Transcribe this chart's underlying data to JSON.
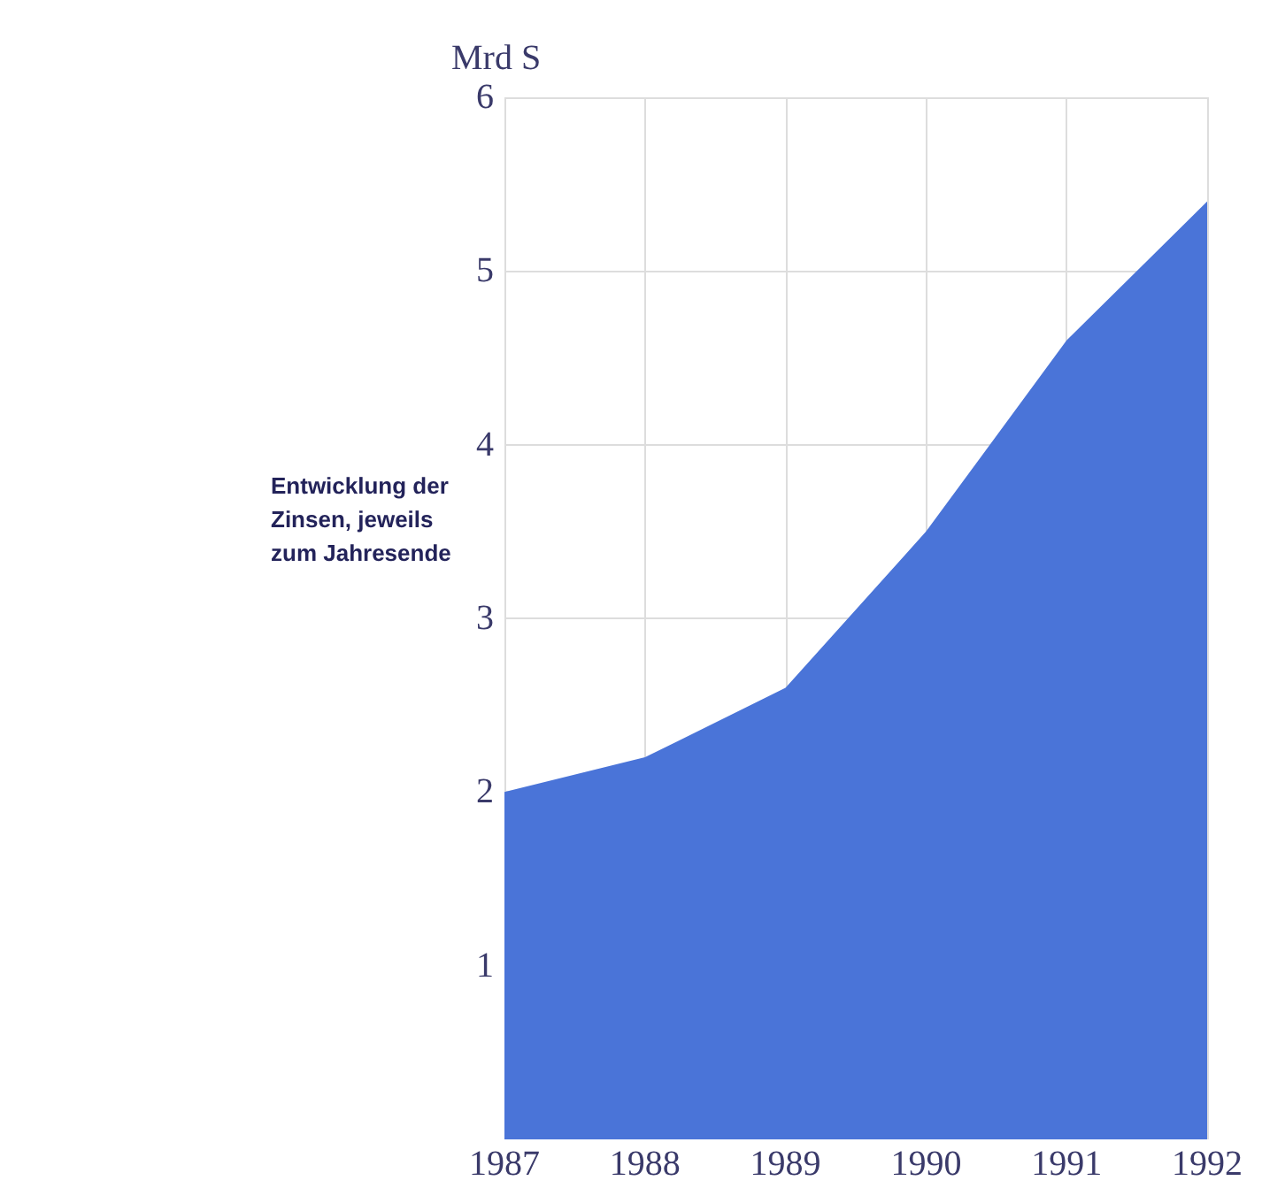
{
  "chart_data": {
    "type": "area",
    "title": "Entwicklung der Zinsen, jeweils zum Jahresende",
    "ylabel": "Mrd S",
    "x": [
      1987,
      1988,
      1989,
      1990,
      1991,
      1992
    ],
    "values": [
      2.0,
      2.2,
      2.6,
      3.5,
      4.6,
      5.4
    ],
    "color": "#4a74d8",
    "xlim": [
      1987,
      1992
    ],
    "xticks": [
      1987,
      1988,
      1989,
      1990,
      1991,
      1992
    ],
    "ylim": [
      0,
      6
    ],
    "yticks": [
      1,
      2,
      3,
      4,
      5,
      6
    ],
    "grid": true
  }
}
